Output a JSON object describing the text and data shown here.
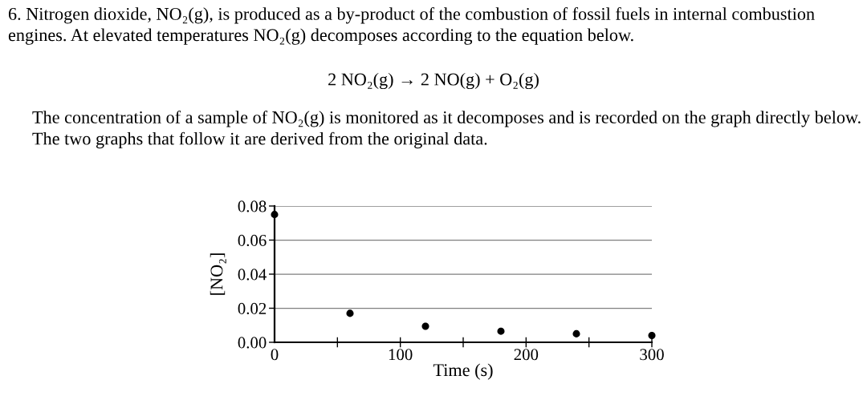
{
  "chart_data": {
    "type": "scatter",
    "title": "6. Nitrogen dioxide, NO₂(g), is produced as a by-product of the combustion of fossil fuels in internal combustion engines. At elevated temperatures NO₂(g) decomposes according to the equation below.",
    "subtitle": "2 NO₂(g) → 2 NO(g) + O₂(g)",
    "annotations": [
      "The concentration of a sample of NO₂(g) is monitored as it decomposes and is recorded on the graph directly below. The two graphs that follow it are derived from the original data."
    ],
    "xlabel": "Time (s)",
    "ylabel": "[NO₂]",
    "x": [
      0,
      60,
      120,
      180,
      240,
      300
    ],
    "values": [
      0.075,
      0.017,
      0.0094,
      0.0065,
      0.005,
      0.004
    ],
    "color": "#000000",
    "marker": "circle",
    "xlim": [
      0,
      300
    ],
    "xticks": [
      0,
      {
        "value": 50,
        "label": null
      },
      100,
      {
        "value": 150,
        "label": null
      },
      200,
      {
        "value": 250,
        "label": null
      },
      300
    ],
    "ylim": [
      0,
      0.08
    ],
    "yticks": [
      {
        "value": 0,
        "label": "0.00"
      },
      {
        "value": 0.02,
        "label": "0.02"
      },
      {
        "value": 0.04,
        "label": "0.04"
      },
      {
        "value": 0.06,
        "label": "0.06"
      },
      {
        "value": 0.08,
        "label": "0.08"
      }
    ],
    "grid": "y"
  }
}
